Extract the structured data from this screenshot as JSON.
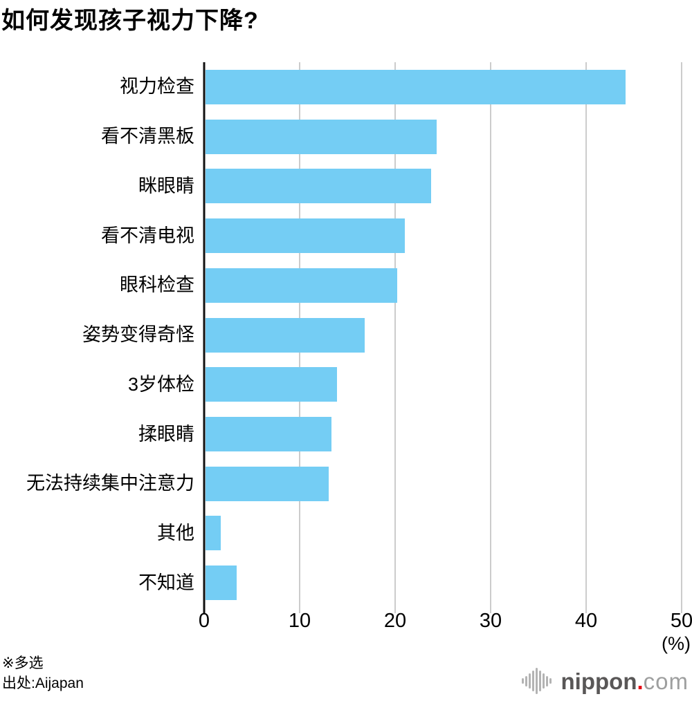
{
  "title": "如何发现孩子视力下降?",
  "chart_data": {
    "type": "bar",
    "orientation": "horizontal",
    "title": "如何发现孩子视力下降?",
    "categories": [
      "视力检查",
      "看不清黑板",
      "眯眼睛",
      "看不清电视",
      "眼科检查",
      "姿势变得奇怪",
      "3岁体检",
      "揉眼睛",
      "无法持续集中注意力",
      "其他",
      "不知道"
    ],
    "values": [
      44.1,
      24.3,
      23.7,
      20.9,
      20.1,
      16.7,
      13.8,
      13.2,
      12.9,
      1.6,
      3.3
    ],
    "xlim": [
      0,
      50
    ],
    "x_ticks": [
      0,
      10,
      20,
      30,
      40,
      50
    ],
    "unit_label": "(%)",
    "grid": true,
    "legend": false,
    "bar_color": "#74cdf4",
    "axis_color": "#111111",
    "gridline_color": "#cccccc",
    "text_color": "#000000"
  },
  "footnotes": {
    "note": "※多选",
    "source": "出处:Aijapan"
  },
  "logo": {
    "brand": "nippon",
    "dot": ".",
    "tld": "com",
    "brand_color": "#595757",
    "dot_color": "#e60012",
    "tld_color": "#9e9f9f",
    "icon_color": "#b3b3b3"
  }
}
